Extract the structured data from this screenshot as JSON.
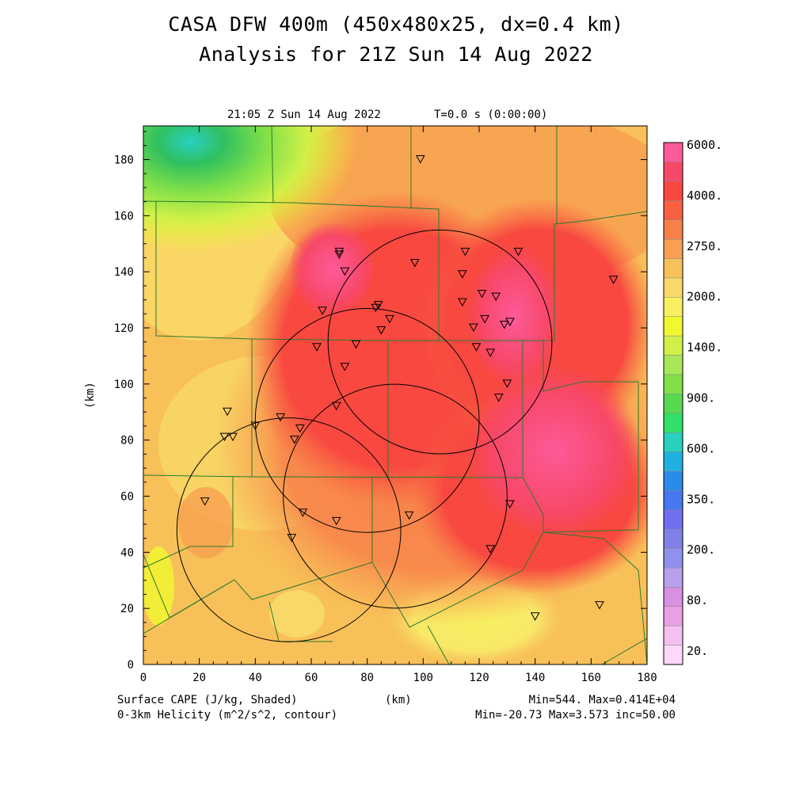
{
  "header": {
    "title_line1": "CASA DFW 400m (450x480x25, dx=0.4 km)",
    "title_line2": "Analysis for 21Z Sun 14 Aug 2022",
    "timestamp": "21:05 Z Sun 14 Aug 2022",
    "time_step": "T=0.0 s (0:00:00)"
  },
  "footer": {
    "field_label": "Surface CAPE (J/kg, Shaded)",
    "contour_label": "0-3km Helicity (m^2/s^2, contour)",
    "xaxis_unit": "(km)",
    "field_range": "Min=544. Max=0.414E+04",
    "contour_range": "Min=-20.73 Max=3.573 inc=50.00"
  },
  "chart_data": {
    "type": "heatmap",
    "xlabel": "(km)",
    "ylabel": "(km)",
    "xlim": [
      0,
      180
    ],
    "ylim": [
      0,
      192
    ],
    "x_ticks": [
      0,
      20,
      40,
      60,
      80,
      100,
      120,
      140,
      160,
      180
    ],
    "y_ticks": [
      0,
      20,
      40,
      60,
      80,
      100,
      120,
      140,
      160,
      180
    ],
    "grid": false,
    "colorbar": {
      "placement": "right",
      "colors": [
        "#ffd8f8",
        "#f4c0f0",
        "#eaa0e4",
        "#d890e0",
        "#b8a0ec",
        "#9090ee",
        "#8080e8",
        "#7070f0",
        "#4878f0",
        "#2a8ce8",
        "#20b0e0",
        "#28d0c0",
        "#30e068",
        "#58d850",
        "#80e048",
        "#a8e858",
        "#d0f048",
        "#f0f830",
        "#f8f060",
        "#f8d868",
        "#f8c058",
        "#f8a050",
        "#f88048",
        "#f86040",
        "#f84840",
        "#f84868",
        "#fc5a98"
      ],
      "labels": [
        "20.",
        "80.",
        "200.",
        "350.",
        "600.",
        "900.",
        "1400.",
        "2000.",
        "2750.",
        "4000.",
        "6000."
      ]
    },
    "field": {
      "name": "Surface CAPE",
      "min": 544,
      "max": 4140
    },
    "contour_field": {
      "name": "0-3km Helicity",
      "min": -20.73,
      "max": 3.573,
      "inc": 50.0
    },
    "radar_circles": [
      {
        "center": [
          106,
          115
        ],
        "radius_km": 40
      },
      {
        "center": [
          80,
          87
        ],
        "radius_km": 40
      },
      {
        "center": [
          90,
          60
        ],
        "radius_km": 40
      },
      {
        "center": [
          52,
          48
        ],
        "radius_km": 40
      }
    ],
    "stations": [
      [
        99,
        180
      ],
      [
        70,
        147
      ],
      [
        70,
        146
      ],
      [
        72,
        140
      ],
      [
        64,
        126
      ],
      [
        84,
        128
      ],
      [
        83,
        127
      ],
      [
        88,
        123
      ],
      [
        85,
        119
      ],
      [
        62,
        113
      ],
      [
        76,
        114
      ],
      [
        72,
        106
      ],
      [
        97,
        143
      ],
      [
        115,
        147
      ],
      [
        114,
        139
      ],
      [
        114,
        129
      ],
      [
        121,
        132
      ],
      [
        126,
        131
      ],
      [
        122,
        123
      ],
      [
        118,
        120
      ],
      [
        131,
        122
      ],
      [
        129,
        121
      ],
      [
        134,
        147
      ],
      [
        168,
        137
      ],
      [
        119,
        113
      ],
      [
        124,
        111
      ],
      [
        130,
        100
      ],
      [
        127,
        95
      ],
      [
        69,
        92
      ],
      [
        30,
        90
      ],
      [
        49,
        88
      ],
      [
        29,
        81
      ],
      [
        32,
        81
      ],
      [
        40,
        85
      ],
      [
        56,
        84
      ],
      [
        54,
        80
      ],
      [
        22,
        58
      ],
      [
        57,
        54
      ],
      [
        69,
        51
      ],
      [
        95,
        53
      ],
      [
        131,
        57
      ],
      [
        53,
        45
      ],
      [
        124,
        41
      ],
      [
        140,
        17
      ],
      [
        163,
        21
      ]
    ]
  }
}
